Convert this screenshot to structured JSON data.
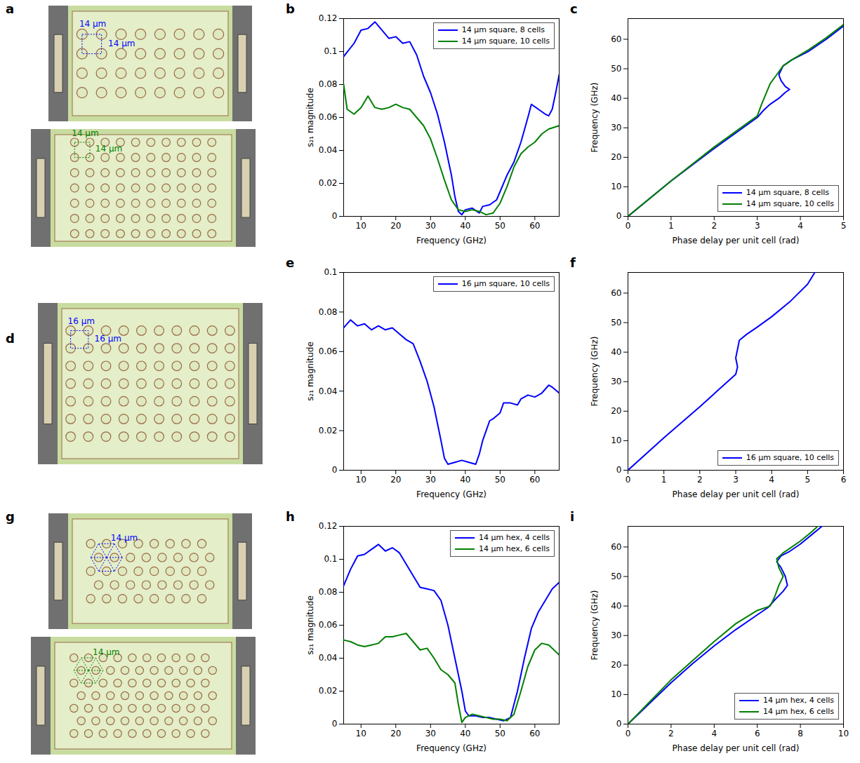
{
  "micrographs": [
    {
      "panel_label": "a",
      "devices": [
        {
          "lattice": "square",
          "columns": 8,
          "rows": 4,
          "color": "#0000ff",
          "labels": [
            "14 µm",
            "14 µm"
          ]
        },
        {
          "lattice": "square",
          "columns": 10,
          "rows": 7,
          "color": "#008000",
          "labels": [
            "14 µm",
            "14 µm"
          ]
        }
      ]
    },
    {
      "panel_label": "d",
      "devices": [
        {
          "lattice": "square",
          "columns": 10,
          "rows": 7,
          "color": "#0000ff",
          "labels": [
            "16 µm",
            "16 µm"
          ]
        }
      ]
    },
    {
      "panel_label": "g",
      "devices": [
        {
          "lattice": "hex",
          "columns": 8,
          "rows": 5,
          "color": "#0000ff",
          "labels": [
            "14 µm"
          ]
        },
        {
          "lattice": "hex",
          "columns": 10,
          "rows": 7,
          "color": "#008000",
          "labels": [
            "14 µm"
          ]
        }
      ]
    }
  ],
  "chart_data": [
    {
      "panel_label": "b",
      "type": "line",
      "xlabel": "Frequency (GHz)",
      "ylabel": "s₂₁ magnitude",
      "xlim": [
        5,
        67
      ],
      "xticks": [
        10,
        20,
        30,
        40,
        50,
        60
      ],
      "ylim": [
        0,
        0.12
      ],
      "yticks": [
        0,
        0.02,
        0.04,
        0.06,
        0.08,
        0.1,
        0.12
      ],
      "legend": "top-right",
      "series": [
        {
          "name": "14 µm square, 8 cells",
          "color": "#0000ff",
          "x": [
            5,
            8,
            10,
            12,
            14,
            16,
            18,
            20,
            22,
            24,
            26,
            28,
            30,
            32,
            34,
            36,
            37,
            38,
            39,
            40,
            42,
            44,
            45,
            47,
            49,
            50,
            52,
            54,
            56,
            58,
            59,
            61,
            63,
            64,
            65,
            66,
            67
          ],
          "values": [
            0.097,
            0.105,
            0.113,
            0.114,
            0.118,
            0.113,
            0.108,
            0.109,
            0.105,
            0.106,
            0.098,
            0.085,
            0.075,
            0.062,
            0.045,
            0.025,
            0.012,
            0.003,
            0.001,
            0.004,
            0.005,
            0.002,
            0.006,
            0.007,
            0.01,
            0.015,
            0.025,
            0.033,
            0.045,
            0.06,
            0.068,
            0.065,
            0.062,
            0.061,
            0.065,
            0.075,
            0.086
          ]
        },
        {
          "name": "14 µm square, 10 cells",
          "color": "#008000",
          "x": [
            5,
            6,
            8,
            10,
            12,
            14,
            16,
            18,
            20,
            22,
            24,
            26,
            28,
            30,
            32,
            34,
            36,
            38,
            40,
            42,
            44,
            46,
            48,
            50,
            52,
            54,
            56,
            58,
            60,
            62,
            64,
            67
          ],
          "values": [
            0.08,
            0.065,
            0.062,
            0.066,
            0.073,
            0.066,
            0.065,
            0.066,
            0.068,
            0.066,
            0.065,
            0.06,
            0.055,
            0.047,
            0.035,
            0.022,
            0.01,
            0.004,
            0.003,
            0.004,
            0.003,
            0.001,
            0.002,
            0.008,
            0.018,
            0.03,
            0.038,
            0.042,
            0.045,
            0.05,
            0.053,
            0.055
          ]
        }
      ]
    },
    {
      "panel_label": "c",
      "type": "line",
      "xlabel": "Phase delay per unit cell (rad)",
      "ylabel": "Frequency (GHz)",
      "xlim": [
        0,
        5
      ],
      "xticks": [
        0,
        1,
        2,
        3,
        4,
        5
      ],
      "ylim": [
        0,
        67
      ],
      "yticks": [
        0,
        10,
        20,
        30,
        40,
        50,
        60
      ],
      "legend": "bottom-right",
      "series": [
        {
          "name": "14 µm square, 8 cells",
          "color": "#0000ff",
          "x": [
            0,
            1,
            2,
            3,
            3.15,
            3.3,
            3.5,
            3.65,
            3.75,
            3.65,
            3.55,
            3.5,
            3.6,
            3.8,
            4.2,
            4.6,
            5
          ],
          "values": [
            0,
            12,
            23,
            33.5,
            36,
            38,
            40,
            42,
            43,
            44,
            46,
            48,
            51,
            53,
            56,
            60,
            64.5
          ]
        },
        {
          "name": "14 µm square, 10 cells",
          "color": "#008000",
          "x": [
            0,
            1,
            2,
            3,
            3.1,
            3.3,
            3.45,
            3.6,
            3.8,
            4.2,
            4.6,
            5
          ],
          "values": [
            0,
            12,
            23.5,
            34,
            38,
            45,
            48,
            51,
            53,
            56.5,
            60.5,
            65
          ]
        }
      ]
    },
    {
      "panel_label": "e",
      "type": "line",
      "xlabel": "Frequency (GHz)",
      "ylabel": "s₂₁ magnitude",
      "xlim": [
        5,
        67
      ],
      "xticks": [
        10,
        20,
        30,
        40,
        50,
        60
      ],
      "ylim": [
        0,
        0.1
      ],
      "yticks": [
        0,
        0.02,
        0.04,
        0.06,
        0.08,
        0.1
      ],
      "legend": "top-right",
      "series": [
        {
          "name": "16 µm square, 10 cells",
          "color": "#0000ff",
          "x": [
            5,
            7,
            9,
            11,
            13,
            15,
            17,
            19,
            21,
            23,
            25,
            27,
            29,
            31,
            33,
            34,
            35,
            37,
            39,
            41,
            43,
            44,
            45,
            46,
            47,
            48,
            50,
            51,
            53,
            55,
            56,
            58,
            60,
            62,
            64,
            65,
            67
          ],
          "values": [
            0.072,
            0.076,
            0.073,
            0.074,
            0.071,
            0.073,
            0.071,
            0.072,
            0.069,
            0.066,
            0.064,
            0.055,
            0.045,
            0.032,
            0.015,
            0.006,
            0.003,
            0.004,
            0.005,
            0.004,
            0.003,
            0.008,
            0.015,
            0.02,
            0.025,
            0.026,
            0.029,
            0.034,
            0.034,
            0.033,
            0.036,
            0.038,
            0.037,
            0.039,
            0.043,
            0.042,
            0.039
          ]
        }
      ]
    },
    {
      "panel_label": "f",
      "type": "line",
      "xlabel": "Phase delay per unit cell (rad)",
      "ylabel": "Frequency (GHz)",
      "xlim": [
        0,
        6
      ],
      "xticks": [
        0,
        1,
        2,
        3,
        4,
        5,
        6
      ],
      "ylim": [
        0,
        67
      ],
      "yticks": [
        0,
        10,
        20,
        30,
        40,
        50,
        60
      ],
      "legend": "bottom-right",
      "series": [
        {
          "name": "16 µm square, 10 cells",
          "color": "#0000ff",
          "x": [
            0,
            1,
            2,
            2.5,
            3,
            3.05,
            3,
            3.05,
            3.1,
            3.3,
            3.6,
            4,
            4.5,
            5,
            5.2
          ],
          "values": [
            0,
            11,
            21.5,
            27,
            32.5,
            35,
            38,
            41,
            44,
            46,
            48.5,
            52,
            57,
            63,
            67
          ]
        }
      ]
    },
    {
      "panel_label": "h",
      "type": "line",
      "xlabel": "Frequency (GHz)",
      "ylabel": "s₂₁ magnitude",
      "xlim": [
        5,
        67
      ],
      "xticks": [
        10,
        20,
        30,
        40,
        50,
        60
      ],
      "ylim": [
        0,
        0.12
      ],
      "yticks": [
        0,
        0.02,
        0.04,
        0.06,
        0.08,
        0.1,
        0.12
      ],
      "legend": "top-right",
      "series": [
        {
          "name": "14 µm hex, 4 cells",
          "color": "#0000ff",
          "x": [
            5,
            7,
            9,
            11,
            13,
            15,
            17,
            19,
            21,
            23,
            25,
            27,
            29,
            31,
            33,
            35,
            37,
            39,
            40,
            41,
            43,
            45,
            47,
            49,
            51,
            53,
            55,
            57,
            59,
            61,
            63,
            65,
            67
          ],
          "values": [
            0.084,
            0.094,
            0.102,
            0.103,
            0.106,
            0.109,
            0.105,
            0.107,
            0.104,
            0.097,
            0.09,
            0.083,
            0.082,
            0.081,
            0.075,
            0.06,
            0.04,
            0.02,
            0.008,
            0.005,
            0.005,
            0.004,
            0.004,
            0.003,
            0.002,
            0.004,
            0.02,
            0.04,
            0.058,
            0.068,
            0.075,
            0.082,
            0.086
          ]
        },
        {
          "name": "14 µm hex, 6 cells",
          "color": "#008000",
          "x": [
            5,
            7,
            9,
            11,
            13,
            15,
            17,
            19,
            21,
            23,
            25,
            27,
            29,
            31,
            33,
            35,
            37,
            38,
            39,
            40,
            42,
            44,
            46,
            48,
            50,
            52,
            54,
            56,
            58,
            60,
            62,
            64,
            67
          ],
          "values": [
            0.051,
            0.05,
            0.048,
            0.047,
            0.048,
            0.049,
            0.053,
            0.053,
            0.054,
            0.055,
            0.05,
            0.045,
            0.046,
            0.04,
            0.033,
            0.03,
            0.025,
            0.012,
            0.001,
            0.004,
            0.006,
            0.005,
            0.004,
            0.003,
            0.003,
            0.002,
            0.006,
            0.02,
            0.035,
            0.045,
            0.049,
            0.048,
            0.042
          ]
        }
      ]
    },
    {
      "panel_label": "i",
      "type": "line",
      "xlabel": "Phase delay per unit cell (rad)",
      "ylabel": "Frequency (GHz)",
      "xlim": [
        0,
        10
      ],
      "xticks": [
        0,
        2,
        4,
        6,
        8,
        10
      ],
      "ylim": [
        0,
        67
      ],
      "yticks": [
        0,
        10,
        20,
        30,
        40,
        50,
        60
      ],
      "legend": "bottom-right",
      "series": [
        {
          "name": "14 µm hex, 4 cells",
          "color": "#0000ff",
          "x": [
            0,
            1,
            2,
            3,
            4,
            5,
            6,
            6.5,
            6.8,
            7.2,
            7.4,
            7.3,
            7.1,
            6.9,
            7.1,
            7.5,
            8,
            8.5,
            9
          ],
          "values": [
            0,
            7,
            14,
            20.5,
            26.5,
            32,
            37,
            39.5,
            42,
            45,
            47,
            50,
            53,
            55,
            57,
            58.5,
            61,
            64,
            67
          ]
        },
        {
          "name": "14 µm hex, 6 cells",
          "color": "#008000",
          "x": [
            0,
            1,
            2,
            3,
            4,
            5,
            6,
            6.6,
            6.8,
            7,
            7.2,
            7,
            6.9,
            7.2,
            7.5,
            8,
            8.5,
            8.8
          ],
          "values": [
            0,
            7.5,
            15,
            21.5,
            28,
            34,
            38.5,
            40,
            43,
            47,
            50,
            53,
            56,
            58,
            59.5,
            62,
            65,
            67
          ]
        }
      ]
    }
  ]
}
